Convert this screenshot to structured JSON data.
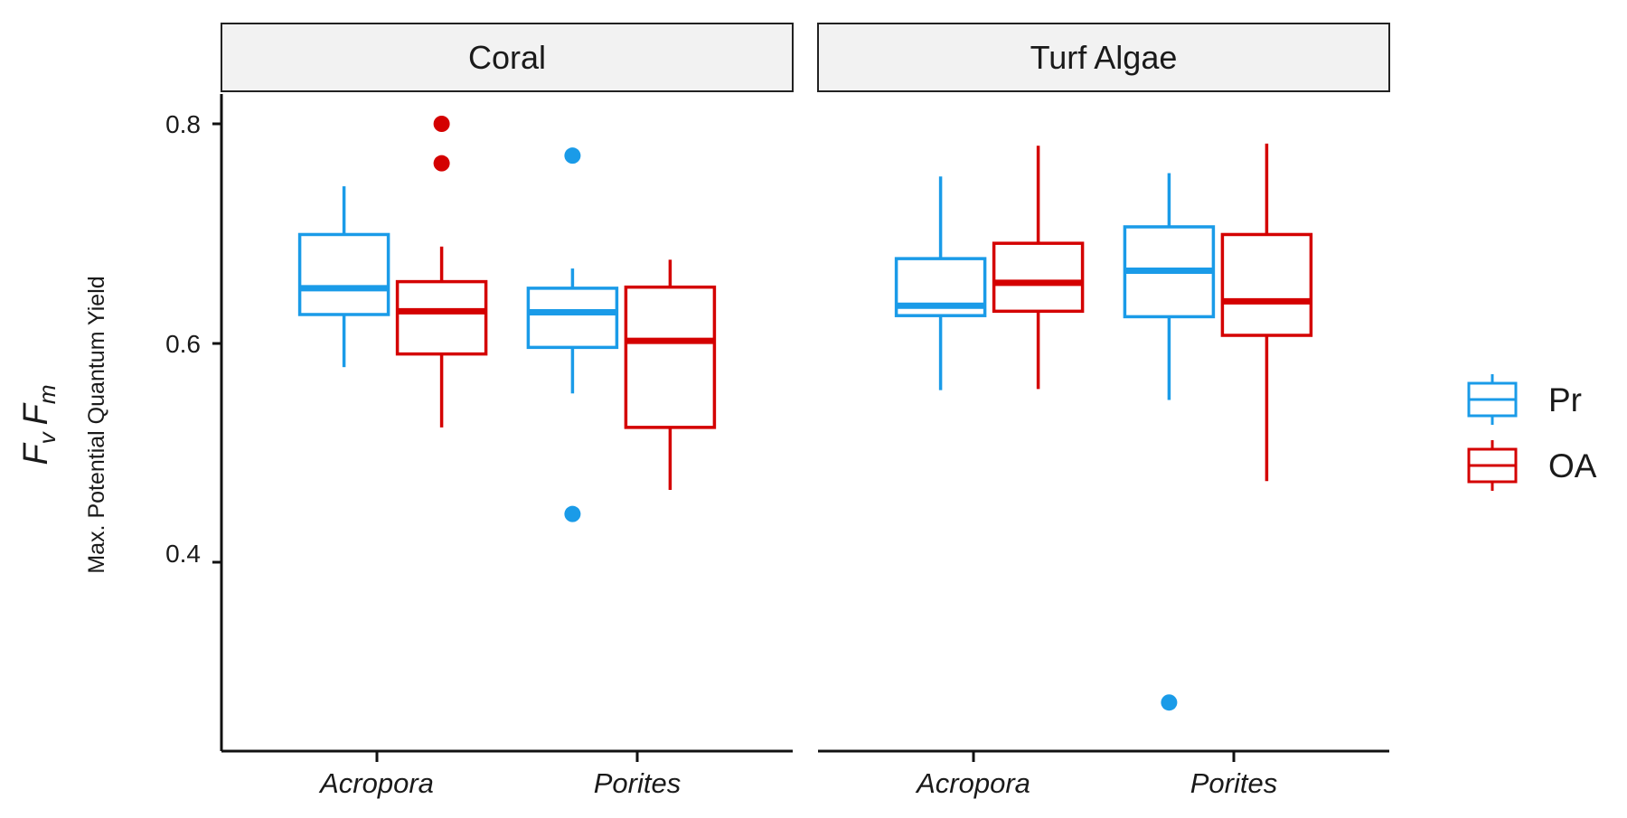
{
  "chart_data": {
    "type": "box",
    "facets": [
      "Coral",
      "Turf Algae"
    ],
    "categories": [
      "Acropora",
      "Porites"
    ],
    "ylabel_main_parts": [
      "F",
      "v",
      "F",
      "m"
    ],
    "ylabel_sub": "Max. Potential Quantum Yield",
    "ylim": [
      0.23,
      0.83
    ],
    "yticks": [
      0.4,
      0.6,
      0.8
    ],
    "ytick_labels": [
      "0.4",
      "0.6",
      "0.8"
    ],
    "legend_position": "right",
    "series": [
      {
        "name": "Pr",
        "color": "#1a9be8",
        "boxes": [
          {
            "facet": "Coral",
            "category": "Acropora",
            "whisker_low": 0.578,
            "q1": 0.626,
            "median": 0.65,
            "q3": 0.699,
            "whisker_high": 0.743,
            "outliers": []
          },
          {
            "facet": "Coral",
            "category": "Porites",
            "whisker_low": 0.554,
            "q1": 0.596,
            "median": 0.628,
            "q3": 0.65,
            "whisker_high": 0.668,
            "outliers": [
              0.771,
              0.444
            ]
          },
          {
            "facet": "Turf Algae",
            "category": "Acropora",
            "whisker_low": 0.557,
            "q1": 0.625,
            "median": 0.634,
            "q3": 0.677,
            "whisker_high": 0.752,
            "outliers": []
          },
          {
            "facet": "Turf Algae",
            "category": "Porites",
            "whisker_low": 0.548,
            "q1": 0.624,
            "median": 0.666,
            "q3": 0.706,
            "whisker_high": 0.755,
            "outliers": [
              0.272
            ]
          }
        ]
      },
      {
        "name": "OA",
        "color": "#d40000",
        "boxes": [
          {
            "facet": "Coral",
            "category": "Acropora",
            "whisker_low": 0.523,
            "q1": 0.59,
            "median": 0.629,
            "q3": 0.656,
            "whisker_high": 0.688,
            "outliers": [
              0.8,
              0.764
            ]
          },
          {
            "facet": "Coral",
            "category": "Porites",
            "whisker_low": 0.466,
            "q1": 0.523,
            "median": 0.602,
            "q3": 0.651,
            "whisker_high": 0.676,
            "outliers": []
          },
          {
            "facet": "Turf Algae",
            "category": "Acropora",
            "whisker_low": 0.558,
            "q1": 0.629,
            "median": 0.655,
            "q3": 0.691,
            "whisker_high": 0.78,
            "outliers": []
          },
          {
            "facet": "Turf Algae",
            "category": "Porites",
            "whisker_low": 0.474,
            "q1": 0.607,
            "median": 0.638,
            "q3": 0.699,
            "whisker_high": 0.782,
            "outliers": []
          }
        ]
      }
    ]
  }
}
